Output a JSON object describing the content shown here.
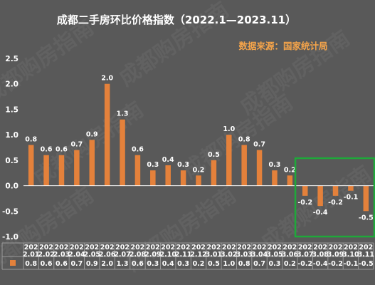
{
  "chart_data": {
    "type": "bar",
    "title": "成都二手房环比价格指数（2022.1—2023.11）",
    "source": "数据来源：国家统计局",
    "watermark": "成都购房指南",
    "categories": [
      "2022.01",
      "2022.02",
      "2022.03",
      "2022.04",
      "2022.05",
      "2022.06",
      "2022.07",
      "2022.08",
      "2022.09",
      "2022.10",
      "2022.11",
      "2022.12",
      "2023.01",
      "2023.02",
      "2023.03",
      "2023.04",
      "2023.05",
      "2023.06",
      "2023.07",
      "2023.08",
      "2023.09",
      "2023.10",
      "2023.11"
    ],
    "values": [
      0.8,
      0.6,
      0.6,
      0.7,
      0.9,
      2.0,
      1.3,
      0.6,
      0.3,
      0.4,
      0.3,
      0.2,
      0.5,
      1.0,
      0.8,
      0.7,
      0.3,
      0.2,
      -0.2,
      -0.4,
      -0.2,
      -0.1,
      -0.5
    ],
    "value_labels": [
      "0.8",
      "0.6",
      "0.6",
      "0.7",
      "0.9",
      "2.0",
      "1.3",
      "0.6",
      "0.3",
      "0.4",
      "0.3",
      "0.2",
      "0.5",
      "1.0",
      "0.8",
      "0.7",
      "0.3",
      "0.2",
      "-0.2",
      "-0.4",
      "-0.2",
      "-0.1",
      "-0.5"
    ],
    "table_values": [
      "0.8",
      "0.6",
      "0.6",
      "0.7",
      "0.9",
      "2.0",
      "1.3",
      "0.6",
      "0.3",
      "0.4",
      "0.3",
      "0.2",
      "0.5",
      "1.0",
      "0.8",
      "0.7",
      "0.3",
      "0.2",
      "-0.2",
      "-0.4",
      "-0.2",
      "-0.1",
      "-0.5"
    ],
    "ylim": [
      -1.0,
      2.5
    ],
    "yticks": [
      "-1.0",
      "-0.5",
      "0.0",
      "0.5",
      "1.0",
      "1.5",
      "2.0",
      "2.5"
    ],
    "ytick_values": [
      -1.0,
      -0.5,
      0.0,
      0.5,
      1.0,
      1.5,
      2.0,
      2.5
    ],
    "grid": false,
    "highlight": {
      "from_index": 18,
      "to_index": 22
    },
    "colors": {
      "background": "#595959",
      "bar": "#E4813B",
      "text": "#FFFFFF",
      "title": "#FFFFFF",
      "source": "#F5A44A",
      "axis": "#FFFFFF",
      "table_grid": "#9A9A9A",
      "highlight": "#1FA83A"
    }
  }
}
